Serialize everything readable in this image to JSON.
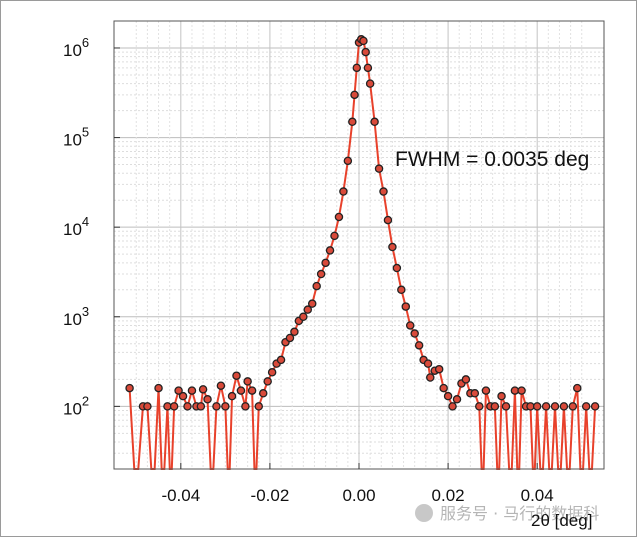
{
  "chart_data": {
    "type": "scatter",
    "title": "",
    "xlabel": "2θ [deg]",
    "ylabel": "",
    "xlim": [
      -0.055,
      0.055
    ],
    "ylim": [
      20,
      2000000
    ],
    "yscale": "log",
    "grid": true,
    "x_ticks": [
      {
        "value": -0.04,
        "label": "-0.04"
      },
      {
        "value": -0.02,
        "label": "-0.02"
      },
      {
        "value": 0.0,
        "label": "0.00"
      },
      {
        "value": 0.02,
        "label": "0.02"
      },
      {
        "value": 0.04,
        "label": "0.04"
      }
    ],
    "y_ticks": [
      {
        "value": 100,
        "base": "10",
        "exp": "2"
      },
      {
        "value": 1000,
        "base": "10",
        "exp": "3"
      },
      {
        "value": 10000,
        "base": "10",
        "exp": "4"
      },
      {
        "value": 100000,
        "base": "10",
        "exp": "5"
      },
      {
        "value": 1000000,
        "base": "10",
        "exp": "6"
      }
    ],
    "annotation": "FWHM = 0.0035 deg",
    "series": [
      {
        "color": "#e8412b",
        "marker_fill": "#d94a3a",
        "marker_edge": "#222222",
        "points": [
          [
            -0.0515,
            160
          ],
          [
            -0.0485,
            100
          ],
          [
            -0.0475,
            100
          ],
          [
            -0.045,
            160
          ],
          [
            -0.043,
            100
          ],
          [
            -0.0415,
            100
          ],
          [
            -0.0405,
            150
          ],
          [
            -0.0395,
            130
          ],
          [
            -0.0385,
            100
          ],
          [
            -0.0375,
            150
          ],
          [
            -0.0365,
            100
          ],
          [
            -0.0355,
            100
          ],
          [
            -0.035,
            155
          ],
          [
            -0.034,
            120
          ],
          [
            -0.032,
            100
          ],
          [
            -0.031,
            170
          ],
          [
            -0.03,
            100
          ],
          [
            -0.0285,
            130
          ],
          [
            -0.0275,
            220
          ],
          [
            -0.0265,
            150
          ],
          [
            -0.0255,
            100
          ],
          [
            -0.025,
            190
          ],
          [
            -0.024,
            150
          ],
          [
            -0.0225,
            100
          ],
          [
            -0.0215,
            140
          ],
          [
            -0.0205,
            190
          ],
          [
            -0.0195,
            240
          ],
          [
            -0.0185,
            300
          ],
          [
            -0.0175,
            330
          ],
          [
            -0.0165,
            520
          ],
          [
            -0.0155,
            580
          ],
          [
            -0.0145,
            680
          ],
          [
            -0.0135,
            900
          ],
          [
            -0.0125,
            1000
          ],
          [
            -0.0115,
            1200
          ],
          [
            -0.0105,
            1400
          ],
          [
            -0.0095,
            2200
          ],
          [
            -0.0085,
            3000
          ],
          [
            -0.0075,
            4000
          ],
          [
            -0.0065,
            5500
          ],
          [
            -0.0055,
            8000
          ],
          [
            -0.0045,
            13000
          ],
          [
            -0.0035,
            25000
          ],
          [
            -0.0025,
            55000
          ],
          [
            -0.0015,
            150000
          ],
          [
            -0.001,
            300000
          ],
          [
            -0.0005,
            600000
          ],
          [
            0.0,
            1150000
          ],
          [
            0.0005,
            1250000
          ],
          [
            0.001,
            1200000
          ],
          [
            0.0015,
            900000
          ],
          [
            0.002,
            600000
          ],
          [
            0.0025,
            400000
          ],
          [
            0.0035,
            150000
          ],
          [
            0.0045,
            45000
          ],
          [
            0.0055,
            25000
          ],
          [
            0.0065,
            12000
          ],
          [
            0.0075,
            6000
          ],
          [
            0.0085,
            3500
          ],
          [
            0.0095,
            2000
          ],
          [
            0.0105,
            1300
          ],
          [
            0.0115,
            800
          ],
          [
            0.0125,
            650
          ],
          [
            0.0135,
            480
          ],
          [
            0.0145,
            330
          ],
          [
            0.0155,
            300
          ],
          [
            0.016,
            210
          ],
          [
            0.017,
            250
          ],
          [
            0.018,
            260
          ],
          [
            0.019,
            160
          ],
          [
            0.02,
            130
          ],
          [
            0.021,
            100
          ],
          [
            0.022,
            120
          ],
          [
            0.023,
            180
          ],
          [
            0.024,
            200
          ],
          [
            0.025,
            140
          ],
          [
            0.026,
            140
          ],
          [
            0.027,
            100
          ],
          [
            0.0285,
            150
          ],
          [
            0.0295,
            100
          ],
          [
            0.0305,
            100
          ],
          [
            0.032,
            130
          ],
          [
            0.033,
            100
          ],
          [
            0.035,
            150
          ],
          [
            0.0365,
            150
          ],
          [
            0.0375,
            100
          ],
          [
            0.0385,
            100
          ],
          [
            0.04,
            100
          ],
          [
            0.042,
            100
          ],
          [
            0.044,
            100
          ],
          [
            0.046,
            100
          ],
          [
            0.048,
            100
          ],
          [
            0.049,
            160
          ],
          [
            0.051,
            100
          ],
          [
            0.053,
            100
          ]
        ]
      }
    ]
  },
  "watermark": {
    "text": "服务号 · 马行的数据科"
  }
}
